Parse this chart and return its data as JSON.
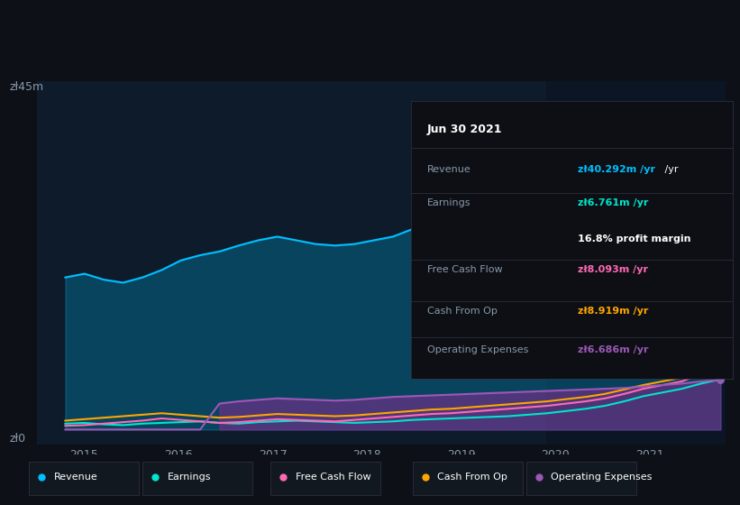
{
  "background_color": "#0d1117",
  "plot_bg_color": "#0d1b2a",
  "highlight_bg_color": "#0a1628",
  "title": "Jun 30 2021",
  "ylabel_top": "zł45m",
  "ylabel_zero": "zł0",
  "xlim": [
    2014.5,
    2021.8
  ],
  "ylim": [
    -2,
    47
  ],
  "xticks": [
    2015,
    2016,
    2017,
    2018,
    2019,
    2020,
    2021
  ],
  "grid_color": "#1e2d3d",
  "legend_items": [
    "Revenue",
    "Earnings",
    "Free Cash Flow",
    "Cash From Op",
    "Operating Expenses"
  ],
  "legend_colors": [
    "#00bfff",
    "#00e5cc",
    "#ff69b4",
    "#ffa500",
    "#9b59b6"
  ],
  "info_box": {
    "date": "Jun 30 2021",
    "revenue_label": "Revenue",
    "revenue_value": "zł40.292m /yr",
    "revenue_color": "#00bfff",
    "earnings_label": "Earnings",
    "earnings_value": "zł6.761m /yr",
    "earnings_color": "#00e5cc",
    "margin_value": "16.8% profit margin",
    "fcf_label": "Free Cash Flow",
    "fcf_value": "zł8.093m /yr",
    "fcf_color": "#ff69b4",
    "cashop_label": "Cash From Op",
    "cashop_value": "zł8.919m /yr",
    "cashop_color": "#ffa500",
    "opex_label": "Operating Expenses",
    "opex_value": "zł6.686m /yr",
    "opex_color": "#9b59b6"
  },
  "revenue": [
    20.5,
    21.0,
    20.2,
    19.8,
    20.5,
    21.5,
    22.8,
    23.5,
    24.0,
    24.8,
    25.5,
    26.0,
    25.5,
    25.0,
    24.8,
    25.0,
    25.5,
    26.0,
    27.0,
    27.5,
    28.0,
    28.5,
    29.0,
    29.5,
    30.0,
    30.5,
    31.0,
    32.0,
    33.0,
    34.0,
    35.5,
    37.0,
    38.5,
    40.0,
    40.3
  ],
  "earnings": [
    0.8,
    0.9,
    0.7,
    0.6,
    0.8,
    0.9,
    1.0,
    1.1,
    0.9,
    0.8,
    1.0,
    1.1,
    1.2,
    1.1,
    1.0,
    0.9,
    1.0,
    1.1,
    1.3,
    1.4,
    1.5,
    1.6,
    1.7,
    1.8,
    2.0,
    2.2,
    2.5,
    2.8,
    3.2,
    3.8,
    4.5,
    5.0,
    5.5,
    6.2,
    6.761
  ],
  "free_cash_flow": [
    0.5,
    0.6,
    0.8,
    1.0,
    1.2,
    1.5,
    1.3,
    1.1,
    0.9,
    1.0,
    1.2,
    1.4,
    1.3,
    1.2,
    1.1,
    1.3,
    1.5,
    1.7,
    1.9,
    2.1,
    2.2,
    2.4,
    2.6,
    2.8,
    3.0,
    3.2,
    3.5,
    3.8,
    4.2,
    4.8,
    5.5,
    6.0,
    6.5,
    7.5,
    8.093
  ],
  "cash_from_op": [
    1.2,
    1.4,
    1.6,
    1.8,
    2.0,
    2.2,
    2.0,
    1.8,
    1.6,
    1.7,
    1.9,
    2.1,
    2.0,
    1.9,
    1.8,
    1.9,
    2.1,
    2.3,
    2.5,
    2.7,
    2.8,
    3.0,
    3.2,
    3.4,
    3.6,
    3.8,
    4.1,
    4.4,
    4.8,
    5.4,
    6.0,
    6.5,
    7.0,
    8.0,
    8.919
  ],
  "operating_expenses": [
    0,
    0,
    0,
    0,
    0,
    0,
    0,
    0,
    3.5,
    3.8,
    4.0,
    4.2,
    4.1,
    4.0,
    3.9,
    4.0,
    4.2,
    4.4,
    4.5,
    4.6,
    4.7,
    4.8,
    4.9,
    5.0,
    5.1,
    5.2,
    5.3,
    5.4,
    5.5,
    5.6,
    5.8,
    6.0,
    6.2,
    6.5,
    6.686
  ],
  "highlight_start": 2019.9,
  "highlight_end": 2021.8
}
